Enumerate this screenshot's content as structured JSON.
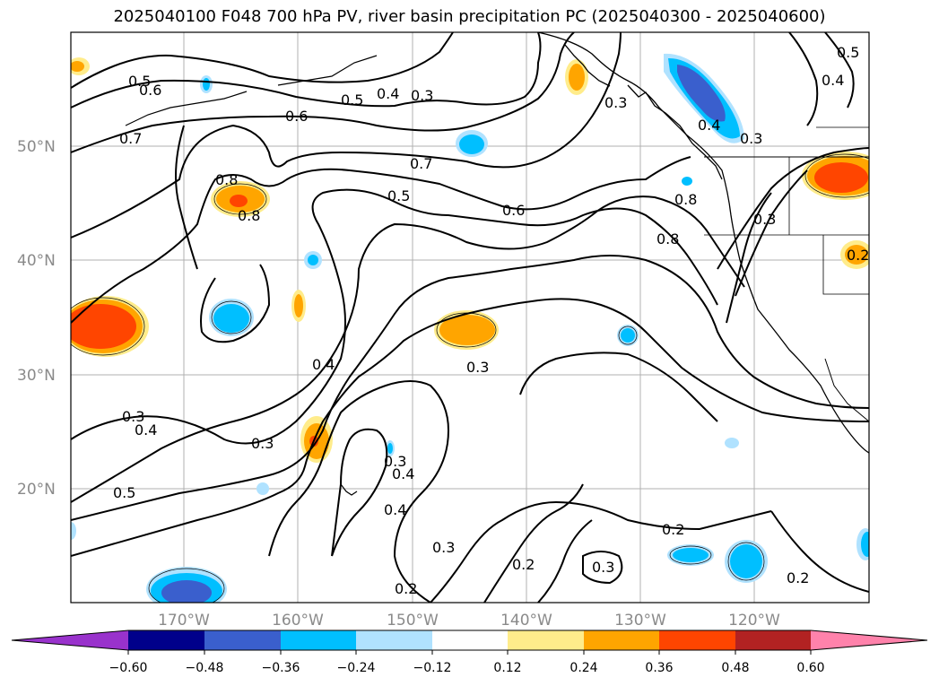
{
  "title": "2025040100 F048 700 hPa PV, river basin precipitation PC (2025040300 - 2025040600)",
  "map": {
    "lat_labels": [
      "50°N",
      "40°N",
      "30°N",
      "20°N"
    ],
    "lon_labels": [
      "170°W",
      "160°W",
      "150°W",
      "140°W",
      "130°W",
      "120°W"
    ],
    "contour_labels": [
      "0.5",
      "0.6",
      "0.7",
      "0.5",
      "0.4",
      "0.3",
      "0.6",
      "0.7",
      "0.8",
      "0.8",
      "0.5",
      "0.6",
      "0.8",
      "0.8",
      "0.3",
      "0.4",
      "0.3",
      "0.4",
      "0.5",
      "0.3",
      "0.4",
      "0.3",
      "0.3",
      "0.4",
      "0.2",
      "0.2",
      "0.3",
      "0.2",
      "0.3",
      "0.3",
      "0.2",
      "0.5",
      "0.4",
      "0.4",
      "0.3",
      "0.2"
    ]
  },
  "colorbar": {
    "colors": [
      "#9932cc",
      "#00008b",
      "#3a5fcd",
      "#00bfff",
      "#b0e2ff",
      "#ffffff",
      "#ffec8b",
      "#ffa500",
      "#ff4500",
      "#b22222",
      "#ff82ab"
    ],
    "tick_labels": [
      "−0.60",
      "−0.48",
      "−0.36",
      "−0.24",
      "−0.12",
      "0.12",
      "0.24",
      "0.36",
      "0.48",
      "0.60"
    ]
  }
}
